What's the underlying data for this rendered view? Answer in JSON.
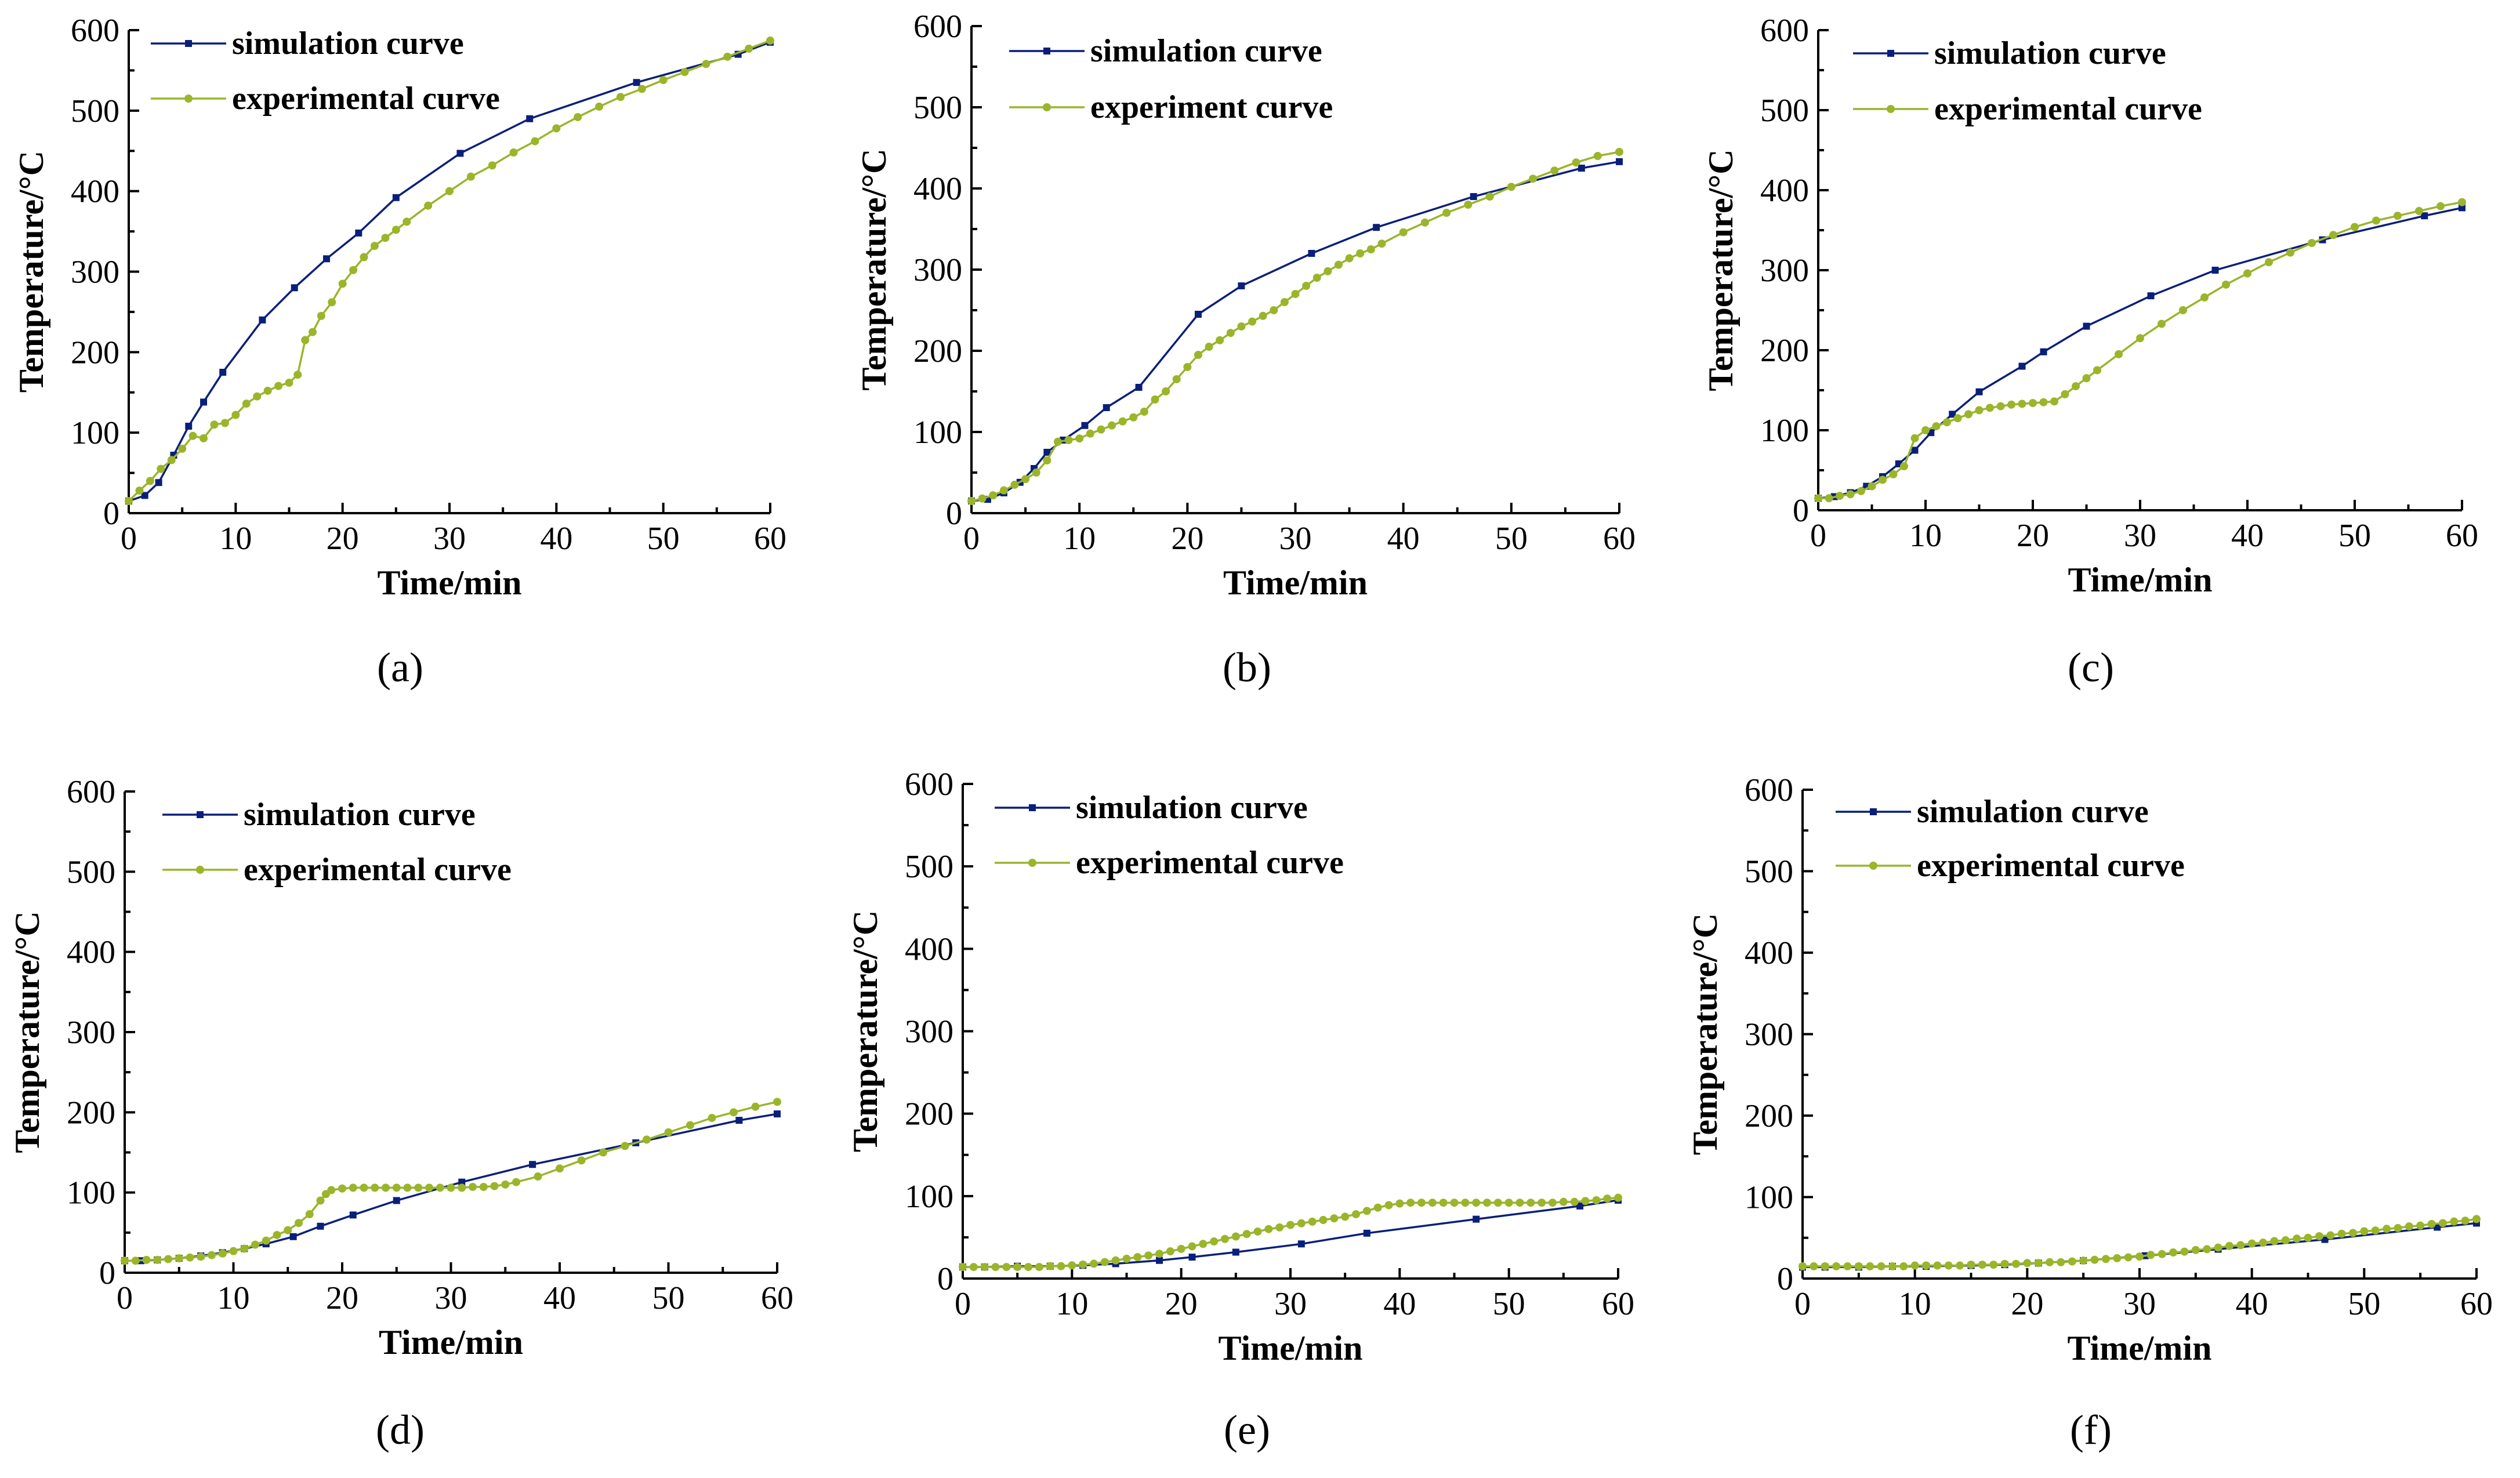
{
  "colors": {
    "simulation": "#0a1f7a",
    "experimental": "#9ab52a"
  },
  "chart_data": [
    {
      "type": "line",
      "panel_label": "(a)",
      "xlabel": "Time/min",
      "ylabel": "Temperature/°C",
      "xlim": [
        0,
        60
      ],
      "ylim": [
        0,
        600
      ],
      "xticks": [
        0,
        10,
        20,
        30,
        40,
        50,
        60
      ],
      "yticks": [
        0,
        100,
        200,
        300,
        400,
        500,
        600
      ],
      "legend_position": "top-left",
      "series": [
        {
          "name": "simulation curve",
          "x": [
            0,
            1.5,
            2.8,
            4.2,
            5.6,
            7,
            8.8,
            12.5,
            15.5,
            18.5,
            21.5,
            25,
            31,
            37.5,
            47.5,
            57,
            60
          ],
          "y": [
            15,
            22,
            38,
            72,
            108,
            138,
            175,
            240,
            280,
            316,
            348,
            392,
            447,
            490,
            535,
            570,
            585
          ]
        },
        {
          "name": "experimental curve",
          "x": [
            0,
            1,
            2,
            3,
            4,
            5,
            6,
            7,
            8,
            9,
            10,
            11,
            12,
            13,
            14,
            15,
            15.8,
            16.5,
            17.2,
            18,
            19,
            20,
            21,
            22,
            23,
            24,
            25,
            26,
            28,
            30,
            32,
            34,
            36,
            38,
            40,
            42,
            44,
            46,
            48,
            50,
            52,
            54,
            56,
            58,
            60
          ],
          "y": [
            15,
            28,
            40,
            55,
            66,
            80,
            96,
            93,
            110,
            112,
            122,
            136,
            145,
            152,
            158,
            162,
            172,
            215,
            225,
            245,
            262,
            285,
            302,
            318,
            332,
            342,
            352,
            362,
            382,
            400,
            418,
            432,
            448,
            462,
            478,
            492,
            505,
            517,
            527,
            538,
            548,
            558,
            567,
            577,
            587
          ]
        }
      ]
    },
    {
      "type": "line",
      "panel_label": "(b)",
      "xlabel": "Time/min",
      "ylabel": "Temperature/°C",
      "xlim": [
        0,
        60
      ],
      "ylim": [
        0,
        600
      ],
      "xticks": [
        0,
        10,
        20,
        30,
        40,
        50,
        60
      ],
      "yticks": [
        0,
        100,
        200,
        300,
        400,
        500,
        600
      ],
      "legend_position": "top-left",
      "series": [
        {
          "name": "simulation curve",
          "x": [
            0,
            1.5,
            3,
            4.5,
            5.8,
            7,
            8.5,
            10.5,
            12.5,
            15.5,
            21,
            25,
            31.5,
            37.5,
            46.5,
            56.5,
            60
          ],
          "y": [
            15,
            17,
            25,
            38,
            55,
            75,
            90,
            108,
            130,
            155,
            245,
            280,
            320,
            352,
            390,
            425,
            433
          ]
        },
        {
          "name": "experiment curve",
          "x": [
            0,
            1,
            2,
            3,
            4,
            5,
            6,
            7,
            8,
            9,
            10,
            11,
            12,
            13,
            14,
            15,
            16,
            17,
            18,
            19,
            20,
            21,
            22,
            23,
            24,
            25,
            26,
            27,
            28,
            29,
            30,
            31,
            32,
            33,
            34,
            35,
            36,
            37,
            38,
            40,
            42,
            44,
            46,
            48,
            50,
            52,
            54,
            56,
            58,
            60
          ],
          "y": [
            15,
            18,
            22,
            28,
            35,
            42,
            50,
            65,
            88,
            90,
            92,
            98,
            103,
            108,
            113,
            118,
            125,
            140,
            150,
            165,
            180,
            195,
            205,
            213,
            222,
            230,
            236,
            243,
            250,
            260,
            270,
            280,
            290,
            298,
            306,
            314,
            320,
            325,
            332,
            346,
            358,
            370,
            380,
            390,
            402,
            412,
            422,
            432,
            440,
            445
          ]
        }
      ]
    },
    {
      "type": "line",
      "panel_label": "(c)",
      "xlabel": "Time/min",
      "ylabel": "Temperature/°C",
      "xlim": [
        0,
        60
      ],
      "ylim": [
        0,
        600
      ],
      "xticks": [
        0,
        10,
        20,
        30,
        40,
        50,
        60
      ],
      "yticks": [
        0,
        100,
        200,
        300,
        400,
        500,
        600
      ],
      "legend_position": "top-left",
      "series": [
        {
          "name": "simulation curve",
          "x": [
            0,
            1.5,
            3,
            4.5,
            6,
            7.5,
            9,
            10.5,
            12.5,
            15,
            19,
            21,
            25,
            31,
            37,
            47,
            56.5,
            60
          ],
          "y": [
            15,
            17,
            22,
            30,
            42,
            58,
            75,
            97,
            120,
            148,
            180,
            198,
            230,
            268,
            300,
            338,
            368,
            378
          ]
        },
        {
          "name": "experimental curve",
          "x": [
            0,
            1,
            2,
            3,
            4,
            5,
            6,
            7,
            8,
            9,
            10,
            11,
            12,
            13,
            14,
            15,
            16,
            17,
            18,
            19,
            20,
            21,
            22,
            23,
            24,
            25,
            26,
            28,
            30,
            32,
            34,
            36,
            38,
            40,
            42,
            44,
            46,
            48,
            50,
            52,
            54,
            56,
            58,
            60
          ],
          "y": [
            15,
            15,
            18,
            20,
            24,
            30,
            38,
            45,
            55,
            90,
            100,
            105,
            110,
            115,
            120,
            125,
            128,
            130,
            132,
            133,
            134,
            135,
            136,
            145,
            155,
            165,
            175,
            195,
            215,
            233,
            250,
            266,
            282,
            296,
            310,
            322,
            334,
            344,
            354,
            362,
            368,
            374,
            380,
            385
          ]
        }
      ]
    },
    {
      "type": "line",
      "panel_label": "(d)",
      "xlabel": "Time/min",
      "ylabel": "Temperature/°C",
      "xlim": [
        0,
        60
      ],
      "ylim": [
        0,
        600
      ],
      "xticks": [
        0,
        10,
        20,
        30,
        40,
        50,
        60
      ],
      "yticks": [
        0,
        100,
        200,
        300,
        400,
        500,
        600
      ],
      "legend_position": "top-left",
      "series": [
        {
          "name": "simulation curve",
          "x": [
            0,
            1.5,
            3,
            5,
            7,
            9,
            11,
            13,
            15.5,
            18,
            21,
            25,
            31,
            37.5,
            47,
            56.5,
            60
          ],
          "y": [
            15,
            15,
            16,
            18,
            21,
            25,
            30,
            36,
            45,
            58,
            72,
            90,
            113,
            135,
            162,
            190,
            198
          ]
        },
        {
          "name": "experimental curve",
          "x": [
            0,
            1,
            2,
            3,
            4,
            5,
            6,
            7,
            8,
            9,
            10,
            11,
            12,
            13,
            14,
            15,
            16,
            17,
            18,
            18.5,
            19,
            20,
            21,
            22,
            23,
            24,
            25,
            26,
            27,
            28,
            29,
            30,
            31,
            32,
            33,
            34,
            35,
            36,
            38,
            40,
            42,
            44,
            46,
            48,
            50,
            52,
            54,
            56,
            58,
            60
          ],
          "y": [
            15,
            15,
            16,
            16,
            17,
            18,
            19,
            20,
            22,
            24,
            27,
            30,
            35,
            40,
            47,
            53,
            62,
            73,
            90,
            98,
            103,
            105,
            106,
            106,
            106,
            106,
            106,
            106,
            106,
            106,
            106,
            106,
            106,
            107,
            107,
            108,
            110,
            113,
            120,
            130,
            140,
            150,
            158,
            166,
            175,
            184,
            193,
            200,
            207,
            213
          ]
        }
      ]
    },
    {
      "type": "line",
      "panel_label": "(e)",
      "xlabel": "Time/min",
      "ylabel": "Temperature/°C",
      "xlim": [
        0,
        60
      ],
      "ylim": [
        0,
        600
      ],
      "xticks": [
        0,
        10,
        20,
        30,
        40,
        50,
        60
      ],
      "yticks": [
        0,
        100,
        200,
        300,
        400,
        500,
        600
      ],
      "legend_position": "top-left",
      "series": [
        {
          "name": "simulation curve",
          "x": [
            0,
            2,
            5,
            8,
            11,
            14,
            18,
            21,
            25,
            31,
            37,
            47,
            56.5,
            60
          ],
          "y": [
            14,
            14,
            15,
            15,
            16,
            18,
            22,
            26,
            32,
            42,
            55,
            72,
            88,
            95
          ]
        },
        {
          "name": "experimental curve",
          "x": [
            0,
            1,
            2,
            3,
            4,
            5,
            6,
            7,
            8,
            9,
            10,
            11,
            12,
            13,
            14,
            15,
            16,
            17,
            18,
            19,
            20,
            21,
            22,
            23,
            24,
            25,
            26,
            27,
            28,
            29,
            30,
            31,
            32,
            33,
            34,
            35,
            36,
            37,
            38,
            39,
            40,
            41,
            42,
            43,
            44,
            45,
            46,
            47,
            48,
            49,
            50,
            51,
            52,
            53,
            54,
            55,
            56,
            57,
            58,
            59,
            60
          ],
          "y": [
            14,
            14,
            14,
            14,
            14,
            14,
            14,
            14,
            15,
            15,
            16,
            17,
            18,
            20,
            22,
            24,
            26,
            28,
            30,
            33,
            36,
            39,
            42,
            45,
            48,
            51,
            54,
            57,
            60,
            62,
            65,
            67,
            69,
            71,
            73,
            75,
            78,
            82,
            86,
            89,
            91,
            92,
            92,
            92,
            92,
            92,
            92,
            92,
            92,
            92,
            92,
            92,
            92,
            92,
            92,
            93,
            93,
            94,
            95,
            97,
            98
          ]
        }
      ]
    },
    {
      "type": "line",
      "panel_label": "(f)",
      "xlabel": "Time/min",
      "ylabel": "Temperature/°C",
      "xlim": [
        0,
        60
      ],
      "ylim": [
        0,
        600
      ],
      "xticks": [
        0,
        10,
        20,
        30,
        40,
        50,
        60
      ],
      "yticks": [
        0,
        100,
        200,
        300,
        400,
        500,
        600
      ],
      "legend_position": "top-left",
      "series": [
        {
          "name": "simulation curve",
          "x": [
            0,
            2,
            5,
            8,
            11,
            15,
            18,
            21,
            25,
            30.5,
            37,
            46.5,
            56.5,
            60
          ],
          "y": [
            14,
            14,
            14,
            15,
            15,
            16,
            17,
            19,
            22,
            28,
            36,
            48,
            63,
            68
          ]
        },
        {
          "name": "experimental curve",
          "x": [
            0,
            1,
            2,
            3,
            4,
            5,
            6,
            7,
            8,
            9,
            10,
            11,
            12,
            13,
            14,
            15,
            16,
            17,
            18,
            19,
            20,
            21,
            22,
            23,
            24,
            25,
            26,
            27,
            28,
            29,
            30,
            31,
            32,
            33,
            34,
            35,
            36,
            37,
            38,
            39,
            40,
            41,
            42,
            43,
            44,
            45,
            46,
            47,
            48,
            49,
            50,
            51,
            52,
            53,
            54,
            55,
            56,
            57,
            58,
            59,
            60
          ],
          "y": [
            15,
            15,
            15,
            15,
            15,
            15,
            15,
            15,
            15,
            15,
            16,
            16,
            16,
            16,
            16,
            17,
            17,
            17,
            18,
            18,
            19,
            19,
            20,
            20,
            21,
            22,
            23,
            24,
            25,
            26,
            27,
            29,
            30,
            32,
            33,
            35,
            36,
            38,
            40,
            41,
            43,
            44,
            46,
            47,
            49,
            50,
            52,
            53,
            55,
            56,
            58,
            59,
            61,
            62,
            64,
            65,
            67,
            68,
            70,
            71,
            73
          ]
        }
      ]
    }
  ]
}
